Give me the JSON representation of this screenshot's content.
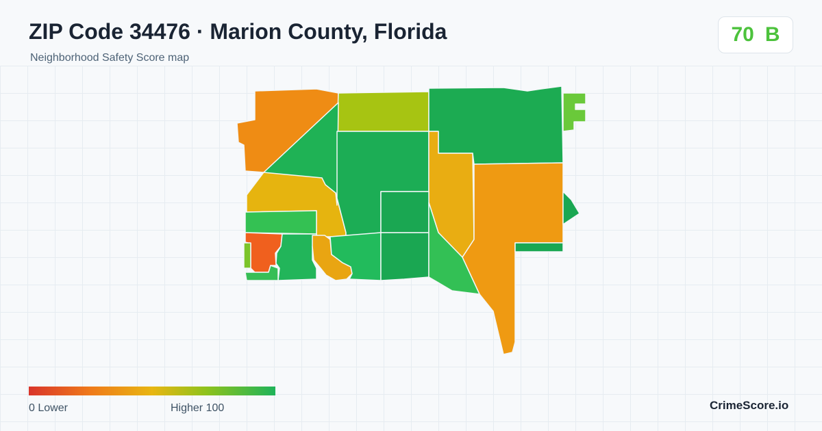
{
  "header": {
    "title": "ZIP Code 34476 · Marion County, Florida",
    "subtitle": "Neighborhood Safety Score map"
  },
  "score": {
    "value": "70",
    "grade": "B",
    "color": "#4cc23c"
  },
  "map": {
    "regions": [
      {
        "name": "northwest",
        "color": "#ef8c14"
      },
      {
        "name": "north-central",
        "color": "#a7c412"
      },
      {
        "name": "northeast",
        "color": "#1cab52"
      },
      {
        "name": "far-northeast-strip",
        "color": "#6ac93a"
      },
      {
        "name": "diagonal-west",
        "color": "#1fb255"
      },
      {
        "name": "west-middle",
        "color": "#e6b40f"
      },
      {
        "name": "central",
        "color": "#1cad55"
      },
      {
        "name": "central-east-upper",
        "color": "#e9ad12"
      },
      {
        "name": "east-large",
        "color": "#ef9a12"
      },
      {
        "name": "east-notch",
        "color": "#1aa752"
      },
      {
        "name": "east-bottom-strip",
        "color": "#1aa752"
      },
      {
        "name": "west-band",
        "color": "#34c153"
      },
      {
        "name": "southwest-red",
        "color": "#f0601e"
      },
      {
        "name": "southwest-sliver",
        "color": "#7cc42a"
      },
      {
        "name": "south-green-1",
        "color": "#22b55a"
      },
      {
        "name": "south-orange",
        "color": "#e9a512"
      },
      {
        "name": "south-green-2",
        "color": "#22bb5c"
      },
      {
        "name": "south-central",
        "color": "#1aa752"
      },
      {
        "name": "south-central-upper",
        "color": "#1aa752"
      },
      {
        "name": "southeast-wedge",
        "color": "#33c055"
      },
      {
        "name": "south-bottom-strip",
        "color": "#37be56"
      }
    ]
  },
  "legend": {
    "low_label": "0  Lower",
    "high_label": "Higher  100"
  },
  "brand": "CrimeScore.io"
}
